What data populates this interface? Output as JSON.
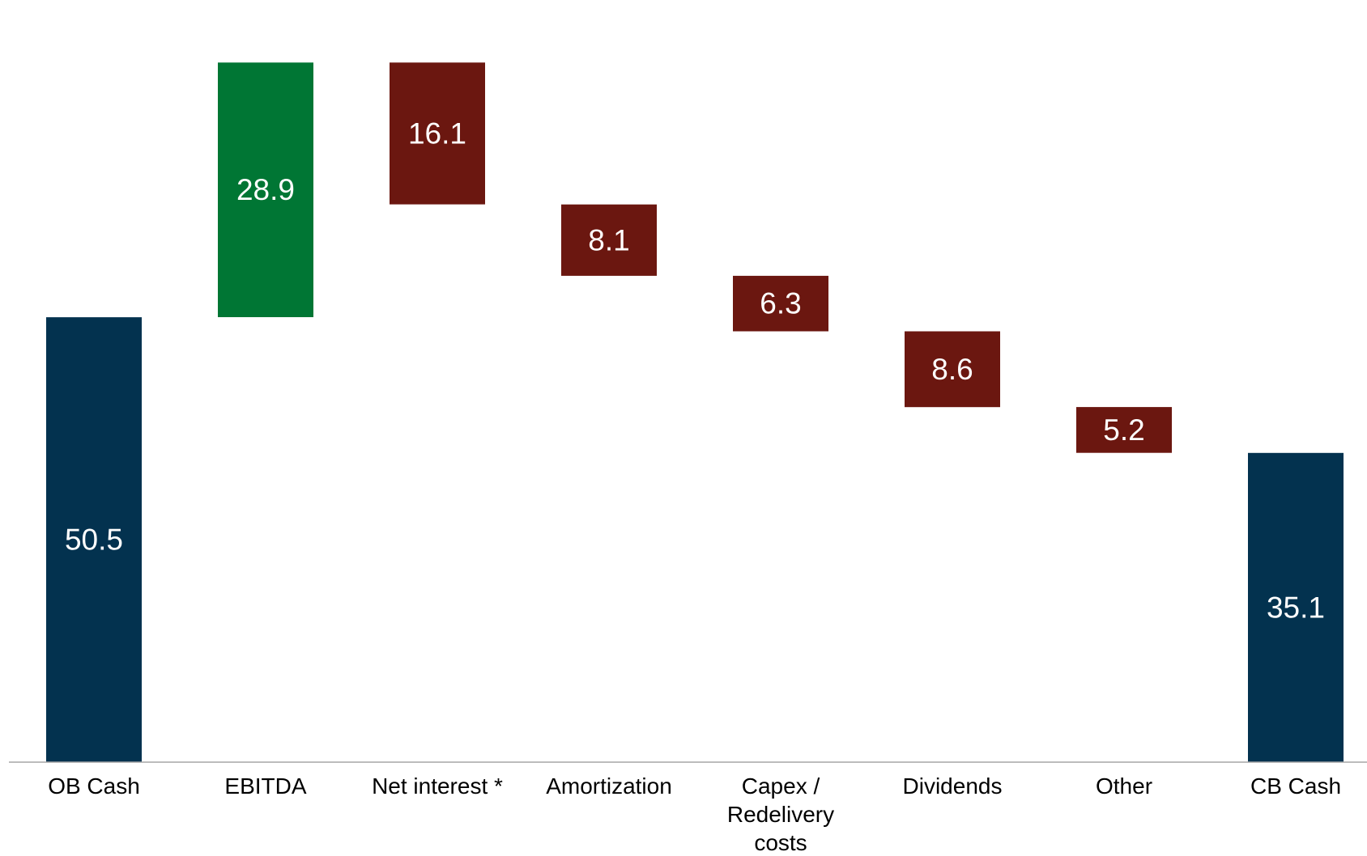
{
  "chart_data": {
    "type": "bar",
    "subtype": "waterfall",
    "title": "",
    "xlabel": "",
    "ylabel": "",
    "grid": false,
    "legend": "none",
    "categories": [
      [
        "OB Cash"
      ],
      [
        "EBITDA"
      ],
      [
        "Net interest *"
      ],
      [
        "Amortization"
      ],
      [
        "Capex /",
        "Redelivery",
        "costs"
      ],
      [
        "Dividends"
      ],
      [
        "Other"
      ],
      [
        "CB Cash"
      ]
    ],
    "steps": [
      {
        "kind": "total",
        "value": 50.5,
        "label": "50.5"
      },
      {
        "kind": "increase",
        "value": 28.9,
        "label": "28.9"
      },
      {
        "kind": "decrease",
        "value": 16.1,
        "label": "16.1"
      },
      {
        "kind": "decrease",
        "value": 8.1,
        "label": "8.1"
      },
      {
        "kind": "decrease",
        "value": 6.3,
        "label": "6.3"
      },
      {
        "kind": "decrease",
        "value": 8.6,
        "label": "8.6"
      },
      {
        "kind": "decrease",
        "value": 5.2,
        "label": "5.2"
      },
      {
        "kind": "total",
        "value": 35.1,
        "label": "35.1"
      }
    ],
    "ylim": [
      0,
      80
    ],
    "colors": {
      "total": "#03324f",
      "increase": "#007634",
      "decrease": "#6b1710",
      "axis": "#a6a6a6",
      "label": "#ffffff",
      "category_text": "#000000"
    }
  }
}
